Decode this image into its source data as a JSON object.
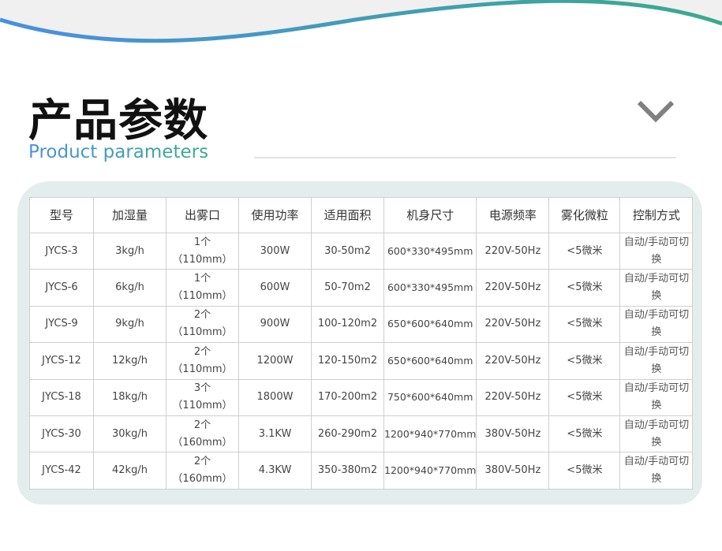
{
  "header": {
    "title": "产品参数",
    "subtitle": "Product parameters",
    "accent_start": "#4a8fe3",
    "accent_end": "#3aaa8a"
  },
  "table": {
    "columns": [
      "型号",
      "加湿量",
      "出雾口",
      "使用功率",
      "适用面积",
      "机身尺寸",
      "电源频率",
      "雾化微粒",
      "控制方式"
    ],
    "rows": [
      [
        "JYCS-3",
        "3kg/h",
        "1个\n（110mm）",
        "300W",
        "30-50m2",
        "600*330*495mm",
        "220V-50Hz",
        "<5微米",
        "自动/手动可切换"
      ],
      [
        "JYCS-6",
        "6kg/h",
        "1个\n（110mm）",
        "600W",
        "50-70m2",
        "600*330*495mm",
        "220V-50Hz",
        "<5微米",
        "自动/手动可切换"
      ],
      [
        "JYCS-9",
        "9kg/h",
        "2个\n（110mm）",
        "900W",
        "100-120m2",
        "650*600*640mm",
        "220V-50Hz",
        "<5微米",
        "自动/手动可切换"
      ],
      [
        "JYCS-12",
        "12kg/h",
        "2个\n（110mm）",
        "1200W",
        "120-150m2",
        "650*600*640mm",
        "220V-50Hz",
        "<5微米",
        "自动/手动可切换"
      ],
      [
        "JYCS-18",
        "18kg/h",
        "3个\n（110mm）",
        "1800W",
        "170-200m2",
        "750*600*640mm",
        "220V-50Hz",
        "<5微米",
        "自动/手动可切换"
      ],
      [
        "JYCS-30",
        "30kg/h",
        "2个\n（160mm）",
        "3.1KW",
        "260-290m2",
        "1200*940*770mm",
        "380V-50Hz",
        "<5微米",
        "自动/手动可切换"
      ],
      [
        "JYCS-42",
        "42kg/h",
        "2个\n（160mm）",
        "4.3KW",
        "350-380m2",
        "1200*940*770mm",
        "380V-50Hz",
        "<5微米",
        "自动/手动可切换"
      ]
    ]
  }
}
